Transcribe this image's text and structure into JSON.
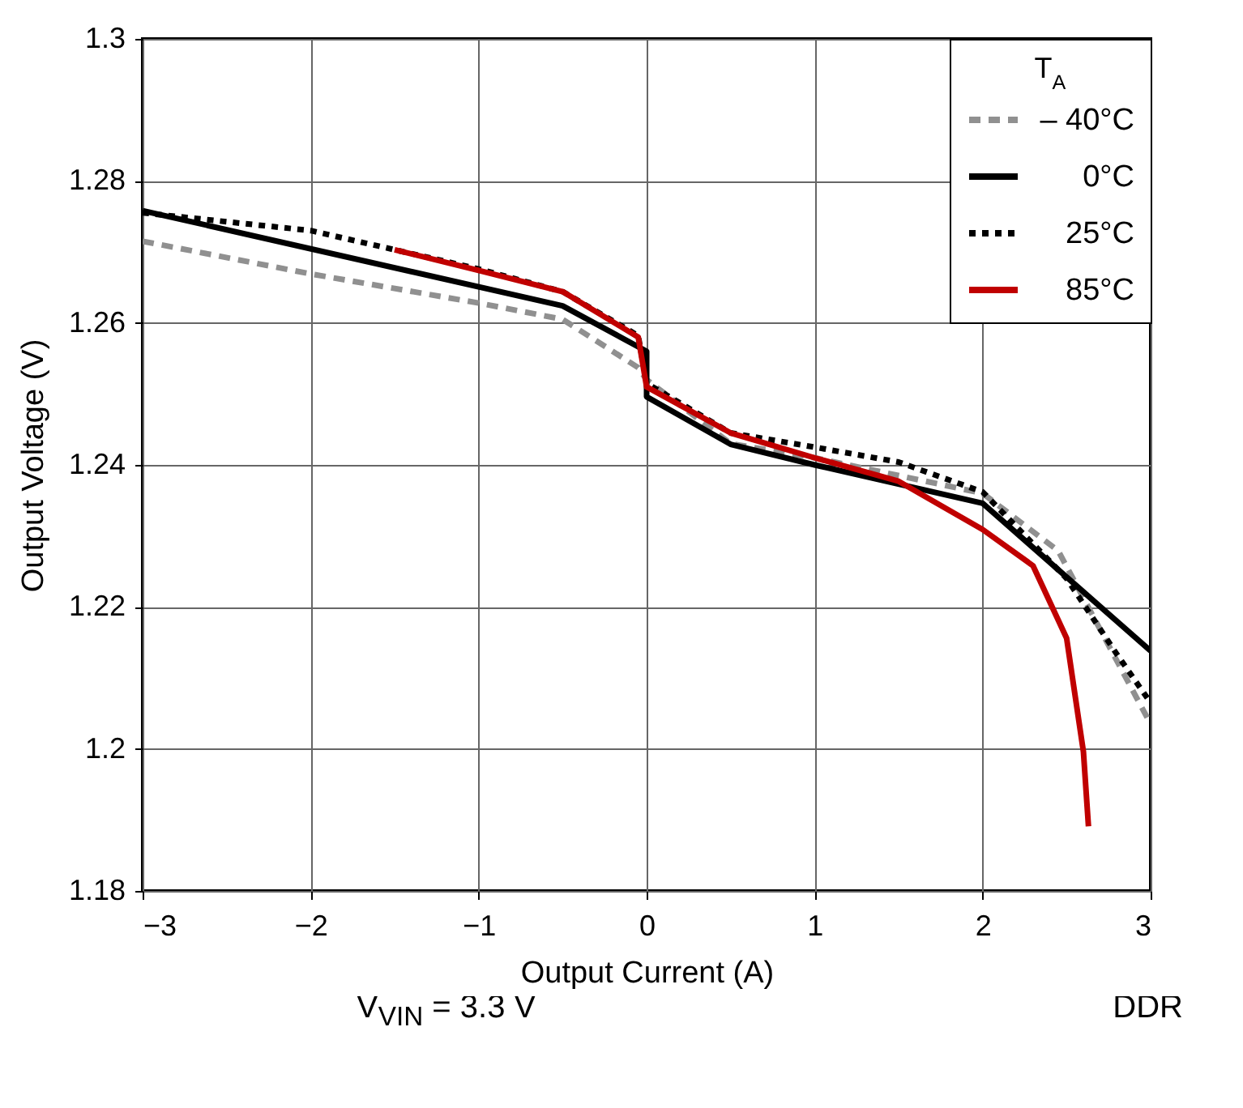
{
  "chart_data": {
    "type": "line",
    "xlabel": "Output Current (A)",
    "ylabel": "Output Voltage (V)",
    "legend_title": "T$_{A}$",
    "legend": "top right",
    "grid": true,
    "xlim": [
      -3,
      3
    ],
    "xticks": [
      -3,
      -2,
      -1,
      0,
      1,
      2,
      3
    ],
    "ylim": [
      1.18,
      1.3
    ],
    "yticks": [
      1.18,
      1.2,
      1.22,
      1.24,
      1.26,
      1.28,
      1.3
    ],
    "annotations": [
      "V$_{VIN}$ = 3.3 V",
      "DDR"
    ],
    "series": [
      {
        "name": "– 40°C",
        "color": "#909090",
        "line_style": "dashed",
        "x": [
          -3,
          -2,
          -1,
          -0.5,
          -0.05,
          0,
          0.5,
          1,
          2,
          2.45,
          3
        ],
        "values": [
          1.2715,
          1.2669,
          1.2628,
          1.2605,
          1.2537,
          1.252,
          1.243,
          1.241,
          1.236,
          1.2279,
          1.2035
        ]
      },
      {
        "name": "0°C",
        "color": "#000000",
        "line_style": "solid",
        "x": [
          -3,
          -0.5,
          0,
          0,
          0.5,
          1,
          2,
          3
        ],
        "values": [
          1.2758,
          1.2624,
          1.256,
          1.2496,
          1.2429,
          1.24,
          1.2346,
          1.2138
        ]
      },
      {
        "name": "25°C",
        "color": "#000000",
        "line_style": "dotted",
        "x": [
          -3,
          -2,
          -1,
          -0.5,
          -0.05,
          0,
          0.5,
          1,
          1.5,
          2,
          2.5,
          2.8,
          3
        ],
        "values": [
          1.2755,
          1.273,
          1.2676,
          1.2644,
          1.2582,
          1.2515,
          1.2445,
          1.2425,
          1.2404,
          1.2362,
          1.224,
          1.2133,
          1.2065
        ]
      },
      {
        "name": "85°C",
        "color": "#c00000",
        "line_style": "solid",
        "x": [
          -1.5,
          -1,
          -0.5,
          -0.05,
          0,
          0.5,
          1,
          1.5,
          2,
          2.3,
          2.5,
          2.6,
          2.63
        ],
        "values": [
          1.2703,
          1.2674,
          1.2644,
          1.258,
          1.251,
          1.2445,
          1.241,
          1.2377,
          1.2309,
          1.2258,
          1.2156,
          1.1996,
          1.1891
        ]
      }
    ]
  }
}
